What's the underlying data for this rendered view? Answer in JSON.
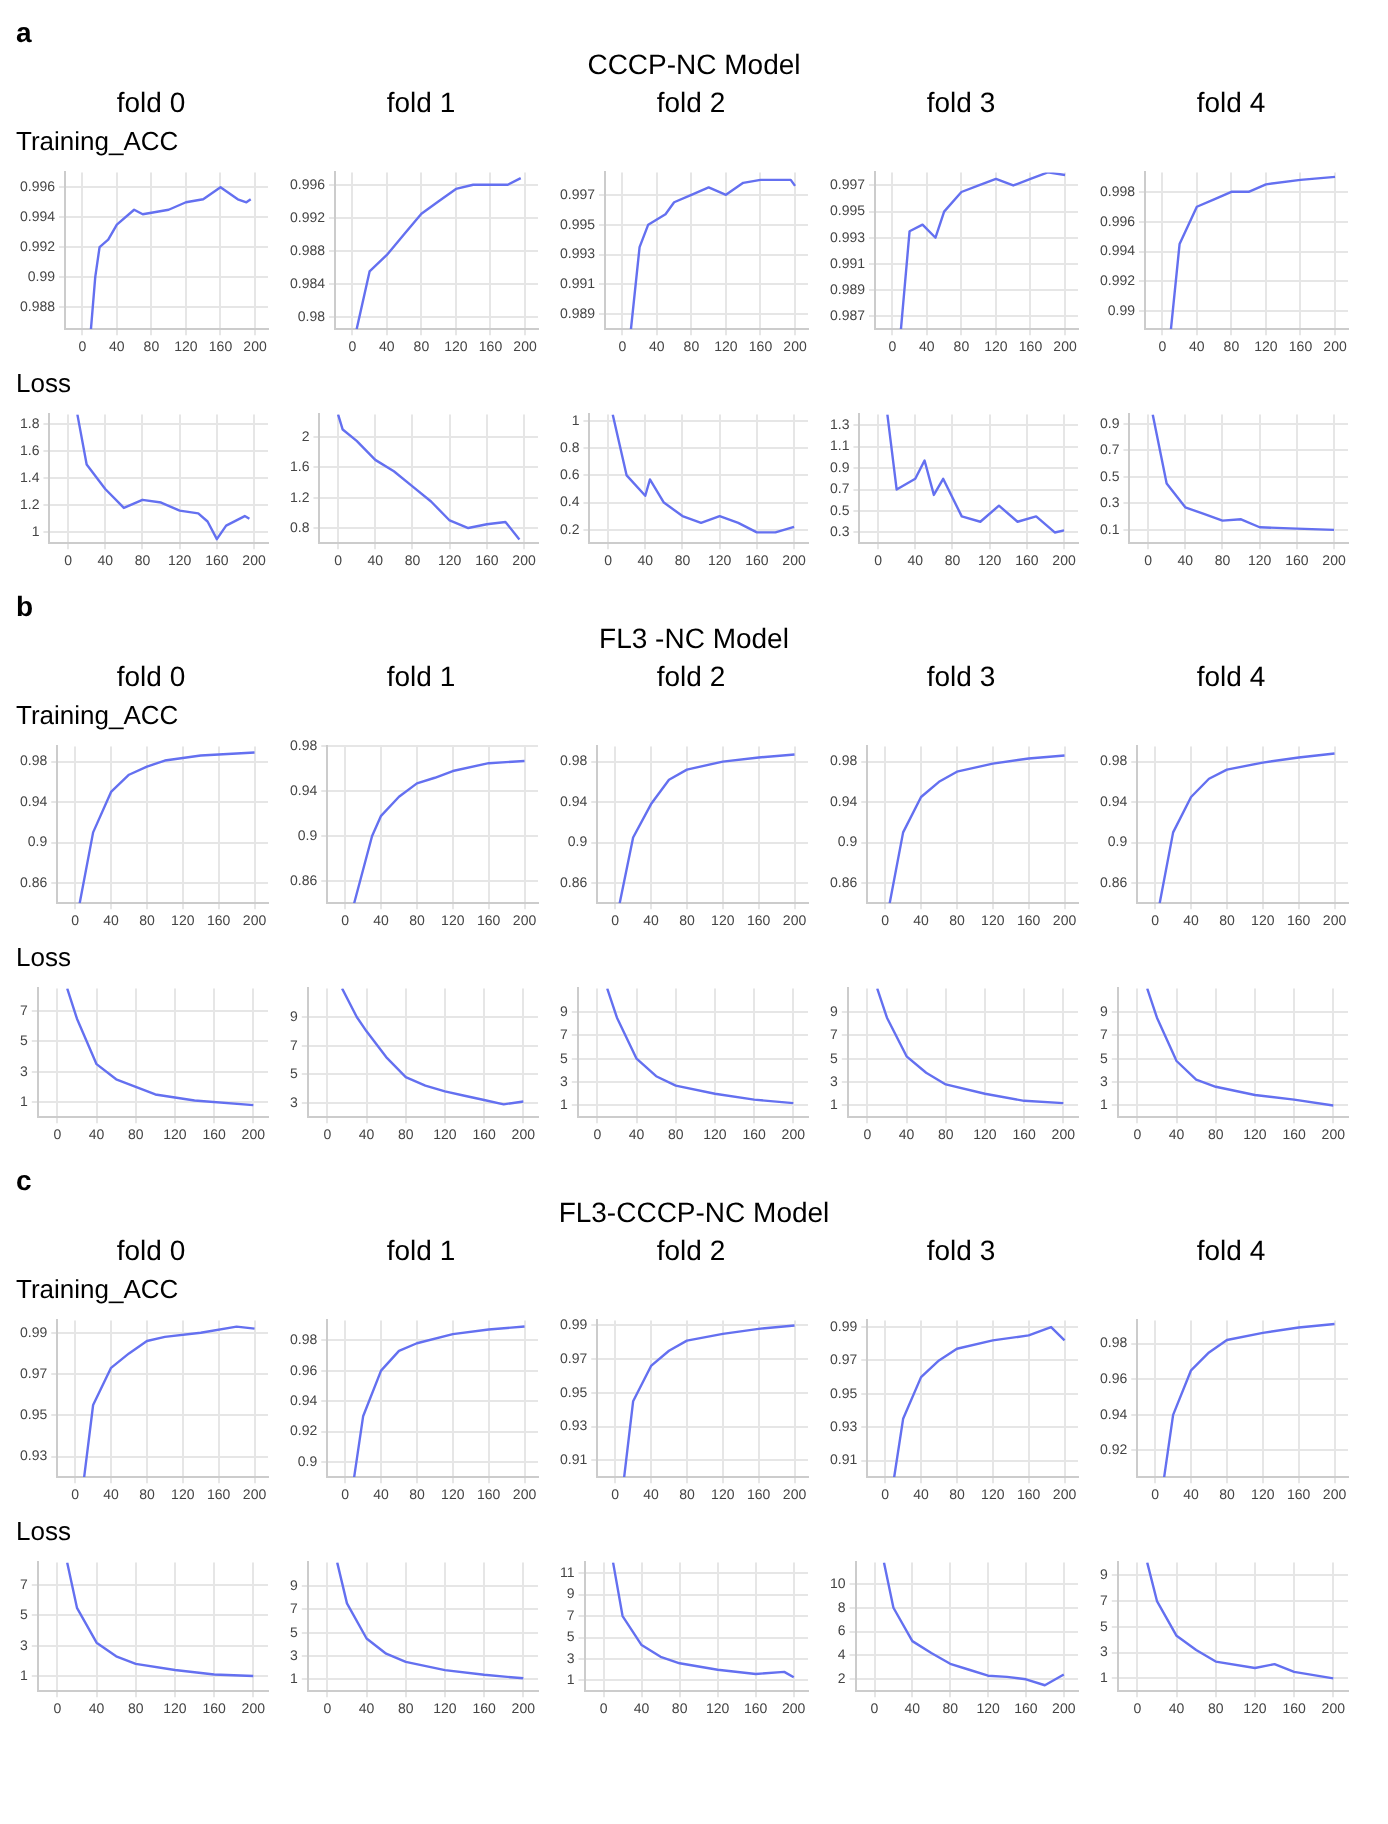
{
  "chart_data": [
    {
      "type": "line",
      "title": "fold 0",
      "ylabel": "Training_ACC",
      "annotations": [
        "a",
        "CCCP-NC Model"
      ],
      "x": [
        10,
        15,
        20,
        30,
        40,
        60,
        70,
        100,
        120,
        140,
        160,
        180,
        190,
        195
      ],
      "values": [
        0.9865,
        0.99,
        0.992,
        0.9925,
        0.9935,
        0.9945,
        0.9942,
        0.9945,
        0.995,
        0.9952,
        0.996,
        0.9952,
        0.995,
        0.9952
      ],
      "color": "#6470f0",
      "xlim": [
        -20,
        215
      ],
      "xticks": [
        0,
        40,
        80,
        120,
        160,
        200
      ],
      "ylim": [
        0.9865,
        0.997
      ],
      "yticks": [
        0.988,
        0.99,
        0.992,
        0.994,
        0.996
      ],
      "grid": true,
      "marker": "none"
    },
    {
      "type": "line",
      "title": "fold 1",
      "x": [
        5,
        20,
        40,
        60,
        80,
        100,
        120,
        140,
        160,
        180,
        195
      ],
      "values": [
        0.9785,
        0.9855,
        0.9875,
        0.99,
        0.9925,
        0.994,
        0.9955,
        0.996,
        0.996,
        0.996,
        0.9968
      ],
      "color": "#6470f0",
      "xlim": [
        -20,
        215
      ],
      "xticks": [
        0,
        40,
        80,
        120,
        160,
        200
      ],
      "ylim": [
        0.9785,
        0.9975
      ],
      "yticks": [
        0.98,
        0.984,
        0.988,
        0.992,
        0.996
      ],
      "grid": true,
      "marker": "none"
    },
    {
      "type": "line",
      "title": "fold 2",
      "x": [
        10,
        20,
        30,
        50,
        60,
        80,
        100,
        120,
        140,
        160,
        180,
        195,
        200
      ],
      "values": [
        0.988,
        0.9935,
        0.995,
        0.9957,
        0.9965,
        0.997,
        0.9975,
        0.997,
        0.9978,
        0.998,
        0.998,
        0.998,
        0.9976
      ],
      "color": "#6470f0",
      "xlim": [
        -20,
        215
      ],
      "xticks": [
        0,
        40,
        80,
        120,
        160,
        200
      ],
      "ylim": [
        0.988,
        0.9985
      ],
      "yticks": [
        0.989,
        0.991,
        0.993,
        0.995,
        0.997
      ],
      "grid": true,
      "marker": "none"
    },
    {
      "type": "line",
      "title": "fold 3",
      "x": [
        10,
        20,
        35,
        50,
        60,
        80,
        100,
        120,
        140,
        160,
        180,
        200
      ],
      "values": [
        0.986,
        0.9935,
        0.994,
        0.993,
        0.995,
        0.9965,
        0.997,
        0.9975,
        0.997,
        0.9975,
        0.998,
        0.9978
      ],
      "color": "#6470f0",
      "xlim": [
        -20,
        215
      ],
      "xticks": [
        0,
        40,
        80,
        120,
        160,
        200
      ],
      "ylim": [
        0.986,
        0.998
      ],
      "yticks": [
        0.987,
        0.989,
        0.991,
        0.993,
        0.995,
        0.997
      ],
      "grid": true,
      "marker": "none"
    },
    {
      "type": "line",
      "title": "fold 4",
      "x": [
        10,
        20,
        40,
        60,
        80,
        100,
        120,
        160,
        200
      ],
      "values": [
        0.9888,
        0.9945,
        0.997,
        0.9975,
        0.998,
        0.998,
        0.9985,
        0.9988,
        0.999
      ],
      "color": "#6470f0",
      "xlim": [
        -20,
        215
      ],
      "xticks": [
        0,
        40,
        80,
        120,
        160,
        200
      ],
      "ylim": [
        0.9888,
        0.9993
      ],
      "yticks": [
        0.99,
        0.992,
        0.994,
        0.996,
        0.998
      ],
      "grid": true,
      "marker": "none"
    },
    {
      "type": "line",
      "ylabel": "Loss",
      "x": [
        10,
        20,
        40,
        60,
        80,
        100,
        120,
        140,
        150,
        160,
        170,
        190,
        195
      ],
      "values": [
        1.87,
        1.5,
        1.32,
        1.18,
        1.24,
        1.22,
        1.16,
        1.14,
        1.08,
        0.95,
        1.05,
        1.12,
        1.1
      ],
      "color": "#6470f0",
      "xlim": [
        -20,
        215
      ],
      "xticks": [
        0,
        40,
        80,
        120,
        160,
        200
      ],
      "ylim": [
        0.92,
        1.87
      ],
      "yticks": [
        1,
        1.2,
        1.4,
        1.6,
        1.8
      ],
      "grid": true,
      "marker": "none"
    },
    {
      "type": "line",
      "x": [
        0,
        5,
        20,
        40,
        60,
        80,
        100,
        120,
        140,
        160,
        180,
        195
      ],
      "values": [
        2.3,
        2.1,
        1.95,
        1.7,
        1.55,
        1.35,
        1.15,
        0.9,
        0.8,
        0.85,
        0.88,
        0.65
      ],
      "color": "#6470f0",
      "xlim": [
        -20,
        215
      ],
      "xticks": [
        0,
        40,
        80,
        120,
        160,
        200
      ],
      "ylim": [
        0.6,
        2.3
      ],
      "yticks": [
        0.8,
        1.2,
        1.6,
        2
      ],
      "grid": true,
      "marker": "none"
    },
    {
      "type": "line",
      "x": [
        5,
        20,
        40,
        45,
        60,
        80,
        100,
        120,
        140,
        160,
        180,
        200
      ],
      "values": [
        1.05,
        0.6,
        0.45,
        0.57,
        0.4,
        0.3,
        0.25,
        0.3,
        0.25,
        0.18,
        0.18,
        0.22
      ],
      "color": "#6470f0",
      "xlim": [
        -20,
        215
      ],
      "xticks": [
        0,
        40,
        80,
        120,
        160,
        200
      ],
      "ylim": [
        0.1,
        1.05
      ],
      "yticks": [
        0.2,
        0.4,
        0.6,
        0.8,
        1
      ],
      "grid": true,
      "marker": "none"
    },
    {
      "type": "line",
      "x": [
        10,
        20,
        40,
        50,
        60,
        70,
        90,
        110,
        130,
        150,
        170,
        190,
        200
      ],
      "values": [
        1.4,
        0.7,
        0.8,
        0.97,
        0.65,
        0.8,
        0.45,
        0.4,
        0.55,
        0.4,
        0.45,
        0.3,
        0.32
      ],
      "color": "#6470f0",
      "xlim": [
        -20,
        215
      ],
      "xticks": [
        0,
        40,
        80,
        120,
        160,
        200
      ],
      "ylim": [
        0.2,
        1.4
      ],
      "yticks": [
        0.3,
        0.5,
        0.7,
        0.9,
        1.1,
        1.3
      ],
      "grid": true,
      "marker": "none"
    },
    {
      "type": "line",
      "x": [
        5,
        20,
        40,
        60,
        80,
        100,
        120,
        160,
        200
      ],
      "values": [
        0.97,
        0.45,
        0.27,
        0.22,
        0.17,
        0.18,
        0.12,
        0.11,
        0.1
      ],
      "color": "#6470f0",
      "xlim": [
        -20,
        215
      ],
      "xticks": [
        0,
        40,
        80,
        120,
        160,
        200
      ],
      "ylim": [
        0,
        0.97
      ],
      "yticks": [
        0.1,
        0.3,
        0.5,
        0.7,
        0.9
      ],
      "grid": true,
      "marker": "none"
    },
    {
      "type": "line",
      "title": "fold 0",
      "ylabel": "Training_ACC",
      "annotations": [
        "b",
        "FL3 -NC Model"
      ],
      "x": [
        5,
        20,
        40,
        60,
        80,
        100,
        140,
        200
      ],
      "values": [
        0.84,
        0.91,
        0.95,
        0.967,
        0.975,
        0.981,
        0.986,
        0.989
      ],
      "color": "#6470f0",
      "xlim": [
        -20,
        215
      ],
      "xticks": [
        0,
        40,
        80,
        120,
        160,
        200
      ],
      "ylim": [
        0.84,
        0.995
      ],
      "yticks": [
        0.86,
        0.9,
        0.94,
        0.98
      ],
      "grid": true,
      "marker": "none"
    },
    {
      "type": "line",
      "title": "fold 1",
      "x": [
        10,
        30,
        40,
        60,
        80,
        100,
        120,
        160,
        200
      ],
      "values": [
        0.84,
        0.9,
        0.918,
        0.935,
        0.947,
        0.952,
        0.958,
        0.965,
        0.967
      ],
      "color": "#6470f0",
      "xlim": [
        -20,
        215
      ],
      "xticks": [
        0,
        40,
        80,
        120,
        160,
        200
      ],
      "ylim": [
        0.84,
        0.98
      ],
      "yticks": [
        0.86,
        0.9,
        0.94,
        0.98
      ],
      "grid": true,
      "marker": "none"
    },
    {
      "type": "line",
      "title": "fold 2",
      "x": [
        5,
        20,
        40,
        60,
        80,
        120,
        160,
        200
      ],
      "values": [
        0.84,
        0.905,
        0.938,
        0.962,
        0.972,
        0.98,
        0.984,
        0.987
      ],
      "color": "#6470f0",
      "xlim": [
        -20,
        215
      ],
      "xticks": [
        0,
        40,
        80,
        120,
        160,
        200
      ],
      "ylim": [
        0.84,
        0.995
      ],
      "yticks": [
        0.86,
        0.9,
        0.94,
        0.98
      ],
      "grid": true,
      "marker": "none"
    },
    {
      "type": "line",
      "title": "fold 3",
      "x": [
        5,
        20,
        40,
        60,
        80,
        120,
        160,
        200
      ],
      "values": [
        0.84,
        0.91,
        0.945,
        0.96,
        0.97,
        0.978,
        0.983,
        0.986
      ],
      "color": "#6470f0",
      "xlim": [
        -20,
        215
      ],
      "xticks": [
        0,
        40,
        80,
        120,
        160,
        200
      ],
      "ylim": [
        0.84,
        0.995
      ],
      "yticks": [
        0.86,
        0.9,
        0.94,
        0.98
      ],
      "grid": true,
      "marker": "none"
    },
    {
      "type": "line",
      "title": "fold 4",
      "x": [
        5,
        20,
        40,
        60,
        80,
        120,
        160,
        200
      ],
      "values": [
        0.84,
        0.91,
        0.945,
        0.963,
        0.972,
        0.979,
        0.984,
        0.988
      ],
      "color": "#6470f0",
      "xlim": [
        -20,
        215
      ],
      "xticks": [
        0,
        40,
        80,
        120,
        160,
        200
      ],
      "ylim": [
        0.84,
        0.995
      ],
      "yticks": [
        0.86,
        0.9,
        0.94,
        0.98
      ],
      "grid": true,
      "marker": "none"
    },
    {
      "type": "line",
      "ylabel": "Loss",
      "x": [
        10,
        20,
        40,
        60,
        80,
        100,
        140,
        200
      ],
      "values": [
        8.5,
        6.5,
        3.5,
        2.5,
        2,
        1.5,
        1.1,
        0.8
      ],
      "color": "#6470f0",
      "xlim": [
        -20,
        215
      ],
      "xticks": [
        0,
        40,
        80,
        120,
        160,
        200
      ],
      "ylim": [
        0,
        8.5
      ],
      "yticks": [
        1,
        3,
        5,
        7
      ],
      "grid": true,
      "marker": "none"
    },
    {
      "type": "line",
      "x": [
        15,
        30,
        40,
        60,
        80,
        100,
        120,
        140,
        160,
        180,
        200
      ],
      "values": [
        11,
        9,
        8,
        6.2,
        4.8,
        4.2,
        3.8,
        3.5,
        3.2,
        2.9,
        3.1
      ],
      "color": "#6470f0",
      "xlim": [
        -20,
        215
      ],
      "xticks": [
        0,
        40,
        80,
        120,
        160,
        200
      ],
      "ylim": [
        2,
        11
      ],
      "yticks": [
        3,
        5,
        7,
        9
      ],
      "grid": true,
      "marker": "none"
    },
    {
      "type": "line",
      "x": [
        10,
        20,
        40,
        60,
        80,
        120,
        160,
        200
      ],
      "values": [
        11,
        8.5,
        5,
        3.5,
        2.7,
        2,
        1.5,
        1.2
      ],
      "color": "#6470f0",
      "xlim": [
        -20,
        215
      ],
      "xticks": [
        0,
        40,
        80,
        120,
        160,
        200
      ],
      "ylim": [
        0,
        11
      ],
      "yticks": [
        1,
        3,
        5,
        7,
        9
      ],
      "grid": true,
      "marker": "none"
    },
    {
      "type": "line",
      "x": [
        10,
        20,
        40,
        60,
        80,
        120,
        160,
        200
      ],
      "values": [
        11,
        8.5,
        5.2,
        3.8,
        2.8,
        2,
        1.4,
        1.2
      ],
      "color": "#6470f0",
      "xlim": [
        -20,
        215
      ],
      "xticks": [
        0,
        40,
        80,
        120,
        160,
        200
      ],
      "ylim": [
        0,
        11
      ],
      "yticks": [
        1,
        3,
        5,
        7,
        9
      ],
      "grid": true,
      "marker": "none"
    },
    {
      "type": "line",
      "x": [
        10,
        20,
        40,
        60,
        80,
        120,
        160,
        200
      ],
      "values": [
        11,
        8.5,
        4.8,
        3.2,
        2.6,
        1.9,
        1.5,
        1
      ],
      "color": "#6470f0",
      "xlim": [
        -20,
        215
      ],
      "xticks": [
        0,
        40,
        80,
        120,
        160,
        200
      ],
      "ylim": [
        0,
        11
      ],
      "yticks": [
        1,
        3,
        5,
        7,
        9
      ],
      "grid": true,
      "marker": "none"
    },
    {
      "type": "line",
      "title": "fold 0",
      "ylabel": "Training_ACC",
      "annotations": [
        "c",
        "FL3-CCCP-NC Model"
      ],
      "x": [
        10,
        20,
        40,
        60,
        80,
        100,
        140,
        180,
        200
      ],
      "values": [
        0.92,
        0.955,
        0.973,
        0.98,
        0.986,
        0.988,
        0.99,
        0.993,
        0.992
      ],
      "color": "#6470f0",
      "xlim": [
        -20,
        215
      ],
      "xticks": [
        0,
        40,
        80,
        120,
        160,
        200
      ],
      "ylim": [
        0.92,
        0.996
      ],
      "yticks": [
        0.93,
        0.95,
        0.97,
        0.99
      ],
      "grid": true,
      "marker": "none"
    },
    {
      "type": "line",
      "title": "fold 1",
      "x": [
        10,
        20,
        40,
        60,
        80,
        120,
        160,
        200
      ],
      "values": [
        0.89,
        0.93,
        0.96,
        0.973,
        0.978,
        0.984,
        0.987,
        0.989
      ],
      "color": "#6470f0",
      "xlim": [
        -20,
        215
      ],
      "xticks": [
        0,
        40,
        80,
        120,
        160,
        200
      ],
      "ylim": [
        0.89,
        0.993
      ],
      "yticks": [
        0.9,
        0.92,
        0.94,
        0.96,
        0.98
      ],
      "grid": true,
      "marker": "none"
    },
    {
      "type": "line",
      "title": "fold 2",
      "x": [
        10,
        20,
        40,
        60,
        80,
        120,
        160,
        200
      ],
      "values": [
        0.9,
        0.945,
        0.966,
        0.975,
        0.981,
        0.985,
        0.988,
        0.99
      ],
      "color": "#6470f0",
      "xlim": [
        -20,
        215
      ],
      "xticks": [
        0,
        40,
        80,
        120,
        160,
        200
      ],
      "ylim": [
        0.9,
        0.993
      ],
      "yticks": [
        0.91,
        0.93,
        0.95,
        0.97,
        0.99
      ],
      "grid": true,
      "marker": "none"
    },
    {
      "type": "line",
      "title": "fold 3",
      "x": [
        10,
        20,
        40,
        60,
        80,
        120,
        160,
        185,
        200
      ],
      "values": [
        0.9,
        0.935,
        0.96,
        0.97,
        0.977,
        0.982,
        0.985,
        0.99,
        0.982
      ],
      "color": "#6470f0",
      "xlim": [
        -20,
        215
      ],
      "xticks": [
        0,
        40,
        80,
        120,
        160,
        200
      ],
      "ylim": [
        0.9,
        0.994
      ],
      "yticks": [
        0.91,
        0.93,
        0.95,
        0.97,
        0.99
      ],
      "grid": true,
      "marker": "none"
    },
    {
      "type": "line",
      "title": "fold 4",
      "x": [
        10,
        20,
        40,
        60,
        80,
        120,
        160,
        200
      ],
      "values": [
        0.905,
        0.94,
        0.965,
        0.975,
        0.982,
        0.986,
        0.989,
        0.991
      ],
      "color": "#6470f0",
      "xlim": [
        -20,
        215
      ],
      "xticks": [
        0,
        40,
        80,
        120,
        160,
        200
      ],
      "ylim": [
        0.905,
        0.993
      ],
      "yticks": [
        0.92,
        0.94,
        0.96,
        0.98
      ],
      "grid": true,
      "marker": "none"
    },
    {
      "type": "line",
      "ylabel": "Loss",
      "x": [
        10,
        20,
        40,
        60,
        80,
        120,
        160,
        200
      ],
      "values": [
        8.5,
        5.5,
        3.2,
        2.3,
        1.8,
        1.4,
        1.1,
        1
      ],
      "color": "#6470f0",
      "xlim": [
        -20,
        215
      ],
      "xticks": [
        0,
        40,
        80,
        120,
        160,
        200
      ],
      "ylim": [
        0,
        8.5
      ],
      "yticks": [
        1,
        3,
        5,
        7
      ],
      "grid": true,
      "marker": "none"
    },
    {
      "type": "line",
      "x": [
        10,
        20,
        40,
        60,
        80,
        120,
        160,
        200
      ],
      "values": [
        11,
        7.5,
        4.5,
        3.2,
        2.5,
        1.8,
        1.4,
        1.1
      ],
      "color": "#6470f0",
      "xlim": [
        -20,
        215
      ],
      "xticks": [
        0,
        40,
        80,
        120,
        160,
        200
      ],
      "ylim": [
        0,
        11
      ],
      "yticks": [
        1,
        3,
        5,
        7,
        9
      ],
      "grid": true,
      "marker": "none"
    },
    {
      "type": "line",
      "x": [
        10,
        20,
        40,
        60,
        80,
        120,
        160,
        190,
        200
      ],
      "values": [
        12,
        7,
        4.3,
        3.2,
        2.6,
        2,
        1.6,
        1.8,
        1.3
      ],
      "color": "#6470f0",
      "xlim": [
        -20,
        215
      ],
      "xticks": [
        0,
        40,
        80,
        120,
        160,
        200
      ],
      "ylim": [
        0,
        12
      ],
      "yticks": [
        1,
        3,
        5,
        7,
        9,
        11
      ],
      "grid": true,
      "marker": "none"
    },
    {
      "type": "line",
      "x": [
        10,
        20,
        40,
        60,
        80,
        100,
        120,
        140,
        160,
        180,
        200
      ],
      "values": [
        11.8,
        8,
        5.2,
        4.2,
        3.3,
        2.8,
        2.3,
        2.2,
        2,
        1.5,
        2.4
      ],
      "color": "#6470f0",
      "xlim": [
        -20,
        215
      ],
      "xticks": [
        0,
        40,
        80,
        120,
        160,
        200
      ],
      "ylim": [
        1,
        11.8
      ],
      "yticks": [
        2,
        4,
        6,
        8,
        10
      ],
      "grid": true,
      "marker": "none"
    },
    {
      "type": "line",
      "x": [
        10,
        20,
        40,
        60,
        80,
        120,
        140,
        160,
        200
      ],
      "values": [
        10,
        7,
        4.3,
        3.2,
        2.3,
        1.8,
        2.1,
        1.5,
        1
      ],
      "color": "#6470f0",
      "xlim": [
        -20,
        215
      ],
      "xticks": [
        0,
        40,
        80,
        120,
        160,
        200
      ],
      "ylim": [
        0,
        10
      ],
      "yticks": [
        1,
        3,
        5,
        7,
        9
      ],
      "grid": true,
      "marker": "none"
    }
  ]
}
